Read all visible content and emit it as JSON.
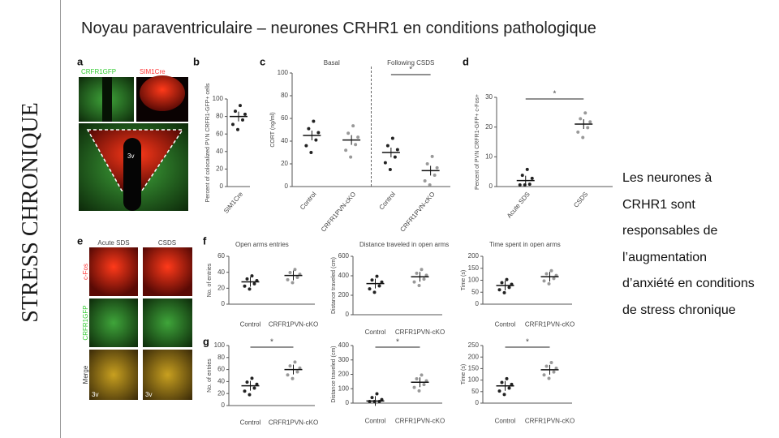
{
  "side_label": "STRESS CHRONIQUE",
  "title": "Noyau paraventriculaire – neurones CRHR1 en conditions pathologique",
  "body_lines": [
    "Les neurones à",
    "CRHR1 sont",
    "responsables de",
    "l’augmentation",
    "d’anxiété en conditions",
    "de stress chronique"
  ],
  "figure": {
    "panel_labels": [
      "a",
      "b",
      "c",
      "d",
      "e",
      "f",
      "g"
    ],
    "panel_a": {
      "labels": [
        "CRFR1GFP",
        "SIM1Cre",
        "3v"
      ]
    },
    "panel_e": {
      "columns": [
        "Acute SDS",
        "CSDS"
      ],
      "rows": [
        "c-Fos",
        "CRFR1GFP",
        "Merge"
      ],
      "ventricle": "3v"
    },
    "plots": [
      {
        "ylabel": "Percent of colocalized PVN CRFR1-GFP+ cells",
        "ylim": [
          0,
          100
        ],
        "yticks": [
          0,
          20,
          40,
          60,
          80,
          100
        ],
        "categories": [
          "SIM1Cre"
        ],
        "means": [
          80
        ]
      },
      {
        "headers": [
          "Basal",
          "Following CSDS"
        ],
        "ylabel": "CORT (ng/ml)",
        "ylim": [
          0,
          100
        ],
        "yticks": [
          0,
          20,
          40,
          60,
          80,
          100
        ],
        "categories": [
          "Control",
          "CRFR1PVN-cKO",
          "Control",
          "CRFR1PVN-cKO"
        ],
        "means": [
          45,
          41,
          30,
          14
        ],
        "annotation": "*"
      },
      {
        "ylabel": "Percent of PVN CRFR1-GFP+ c-Fos+",
        "ylim": [
          0,
          30
        ],
        "yticks": [
          0,
          10,
          20,
          30
        ],
        "categories": [
          "Acute SDS",
          "CSDS"
        ],
        "means": [
          2,
          21
        ],
        "annotation": "*"
      },
      {
        "title": "Open arms entries",
        "ylabel": "No. of entries",
        "ylim": [
          0,
          60
        ],
        "yticks": [
          0,
          20,
          40,
          60
        ],
        "categories": [
          "Control",
          "CRFR1PVN-cKO"
        ],
        "means": [
          28,
          36
        ]
      },
      {
        "title": "Distance traveled in open arms",
        "ylabel": "Distance traveled (cm)",
        "ylim": [
          0,
          600
        ],
        "yticks": [
          0,
          200,
          400,
          600
        ],
        "categories": [
          "Control",
          "CRFR1PVN-cKO"
        ],
        "means": [
          320,
          390
        ]
      },
      {
        "title": "Time spent in open arms",
        "ylabel": "Time (s)",
        "ylim": [
          0,
          200
        ],
        "yticks": [
          0,
          50,
          100,
          150,
          200
        ],
        "categories": [
          "Control",
          "CRFR1PVN-cKO"
        ],
        "means": [
          78,
          115
        ]
      },
      {
        "ylabel": "No. of entries",
        "ylim": [
          0,
          100
        ],
        "yticks": [
          0,
          20,
          40,
          60,
          80,
          100
        ],
        "categories": [
          "Control",
          "CRFR1PVN-cKO"
        ],
        "means": [
          33,
          60
        ],
        "annotation": "*"
      },
      {
        "ylabel": "Distance traveled (cm)",
        "ylim": [
          0,
          400
        ],
        "yticks": [
          0,
          100,
          200,
          300,
          400
        ],
        "categories": [
          "Control",
          "CRFR1PVN-cKO"
        ],
        "means": [
          15,
          145
        ],
        "annotation": "*"
      },
      {
        "ylabel": "Time (s)",
        "ylim": [
          0,
          250
        ],
        "yticks": [
          0,
          50,
          100,
          150,
          200,
          250
        ],
        "categories": [
          "Control",
          "CRFR1PVN-cKO"
        ],
        "means": [
          75,
          145
        ],
        "annotation": "*"
      }
    ]
  }
}
